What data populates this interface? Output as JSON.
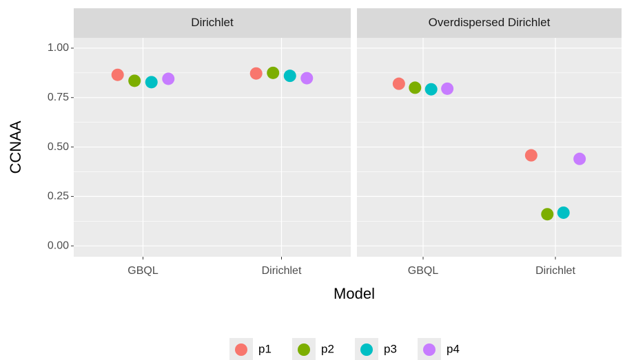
{
  "chart_data": [
    {
      "type": "scatter",
      "title": "Dirichlet",
      "categories": [
        "GBQL",
        "Dirichlet"
      ],
      "series": [
        {
          "name": "p1",
          "color": "#F8766D",
          "values": [
            0.865,
            0.872
          ]
        },
        {
          "name": "p2",
          "color": "#7CAE00",
          "values": [
            0.835,
            0.875
          ]
        },
        {
          "name": "p3",
          "color": "#00BFC4",
          "values": [
            0.828,
            0.86
          ]
        },
        {
          "name": "p4",
          "color": "#C77CFF",
          "values": [
            0.845,
            0.848
          ]
        }
      ],
      "ylim": [
        -0.055,
        1.052
      ],
      "yticks": [
        {
          "value": 0,
          "label": "0.00"
        },
        {
          "value": 0.25,
          "label": "0.25"
        },
        {
          "value": 0.5,
          "label": "0.50"
        },
        {
          "value": 0.75,
          "label": "0.75"
        },
        {
          "value": 1,
          "label": "1.00"
        }
      ],
      "grid": true
    },
    {
      "type": "scatter",
      "title": "Overdispersed Dirichlet",
      "categories": [
        "GBQL",
        "Dirichlet"
      ],
      "series": [
        {
          "name": "p1",
          "color": "#F8766D",
          "values": [
            0.82,
            0.458
          ]
        },
        {
          "name": "p2",
          "color": "#7CAE00",
          "values": [
            0.8,
            0.16
          ]
        },
        {
          "name": "p3",
          "color": "#00BFC4",
          "values": [
            0.792,
            0.168
          ]
        },
        {
          "name": "p4",
          "color": "#C77CFF",
          "values": [
            0.795,
            0.44
          ]
        }
      ],
      "ylim": [
        -0.055,
        1.052
      ],
      "yticks": [
        {
          "value": 0,
          "label": "0.00"
        },
        {
          "value": 0.25,
          "label": "0.25"
        },
        {
          "value": 0.5,
          "label": "0.50"
        },
        {
          "value": 0.75,
          "label": "0.75"
        },
        {
          "value": 1,
          "label": "1.00"
        }
      ],
      "grid": true
    }
  ],
  "x_label": "Model",
  "y_label": "CCNAA"
}
